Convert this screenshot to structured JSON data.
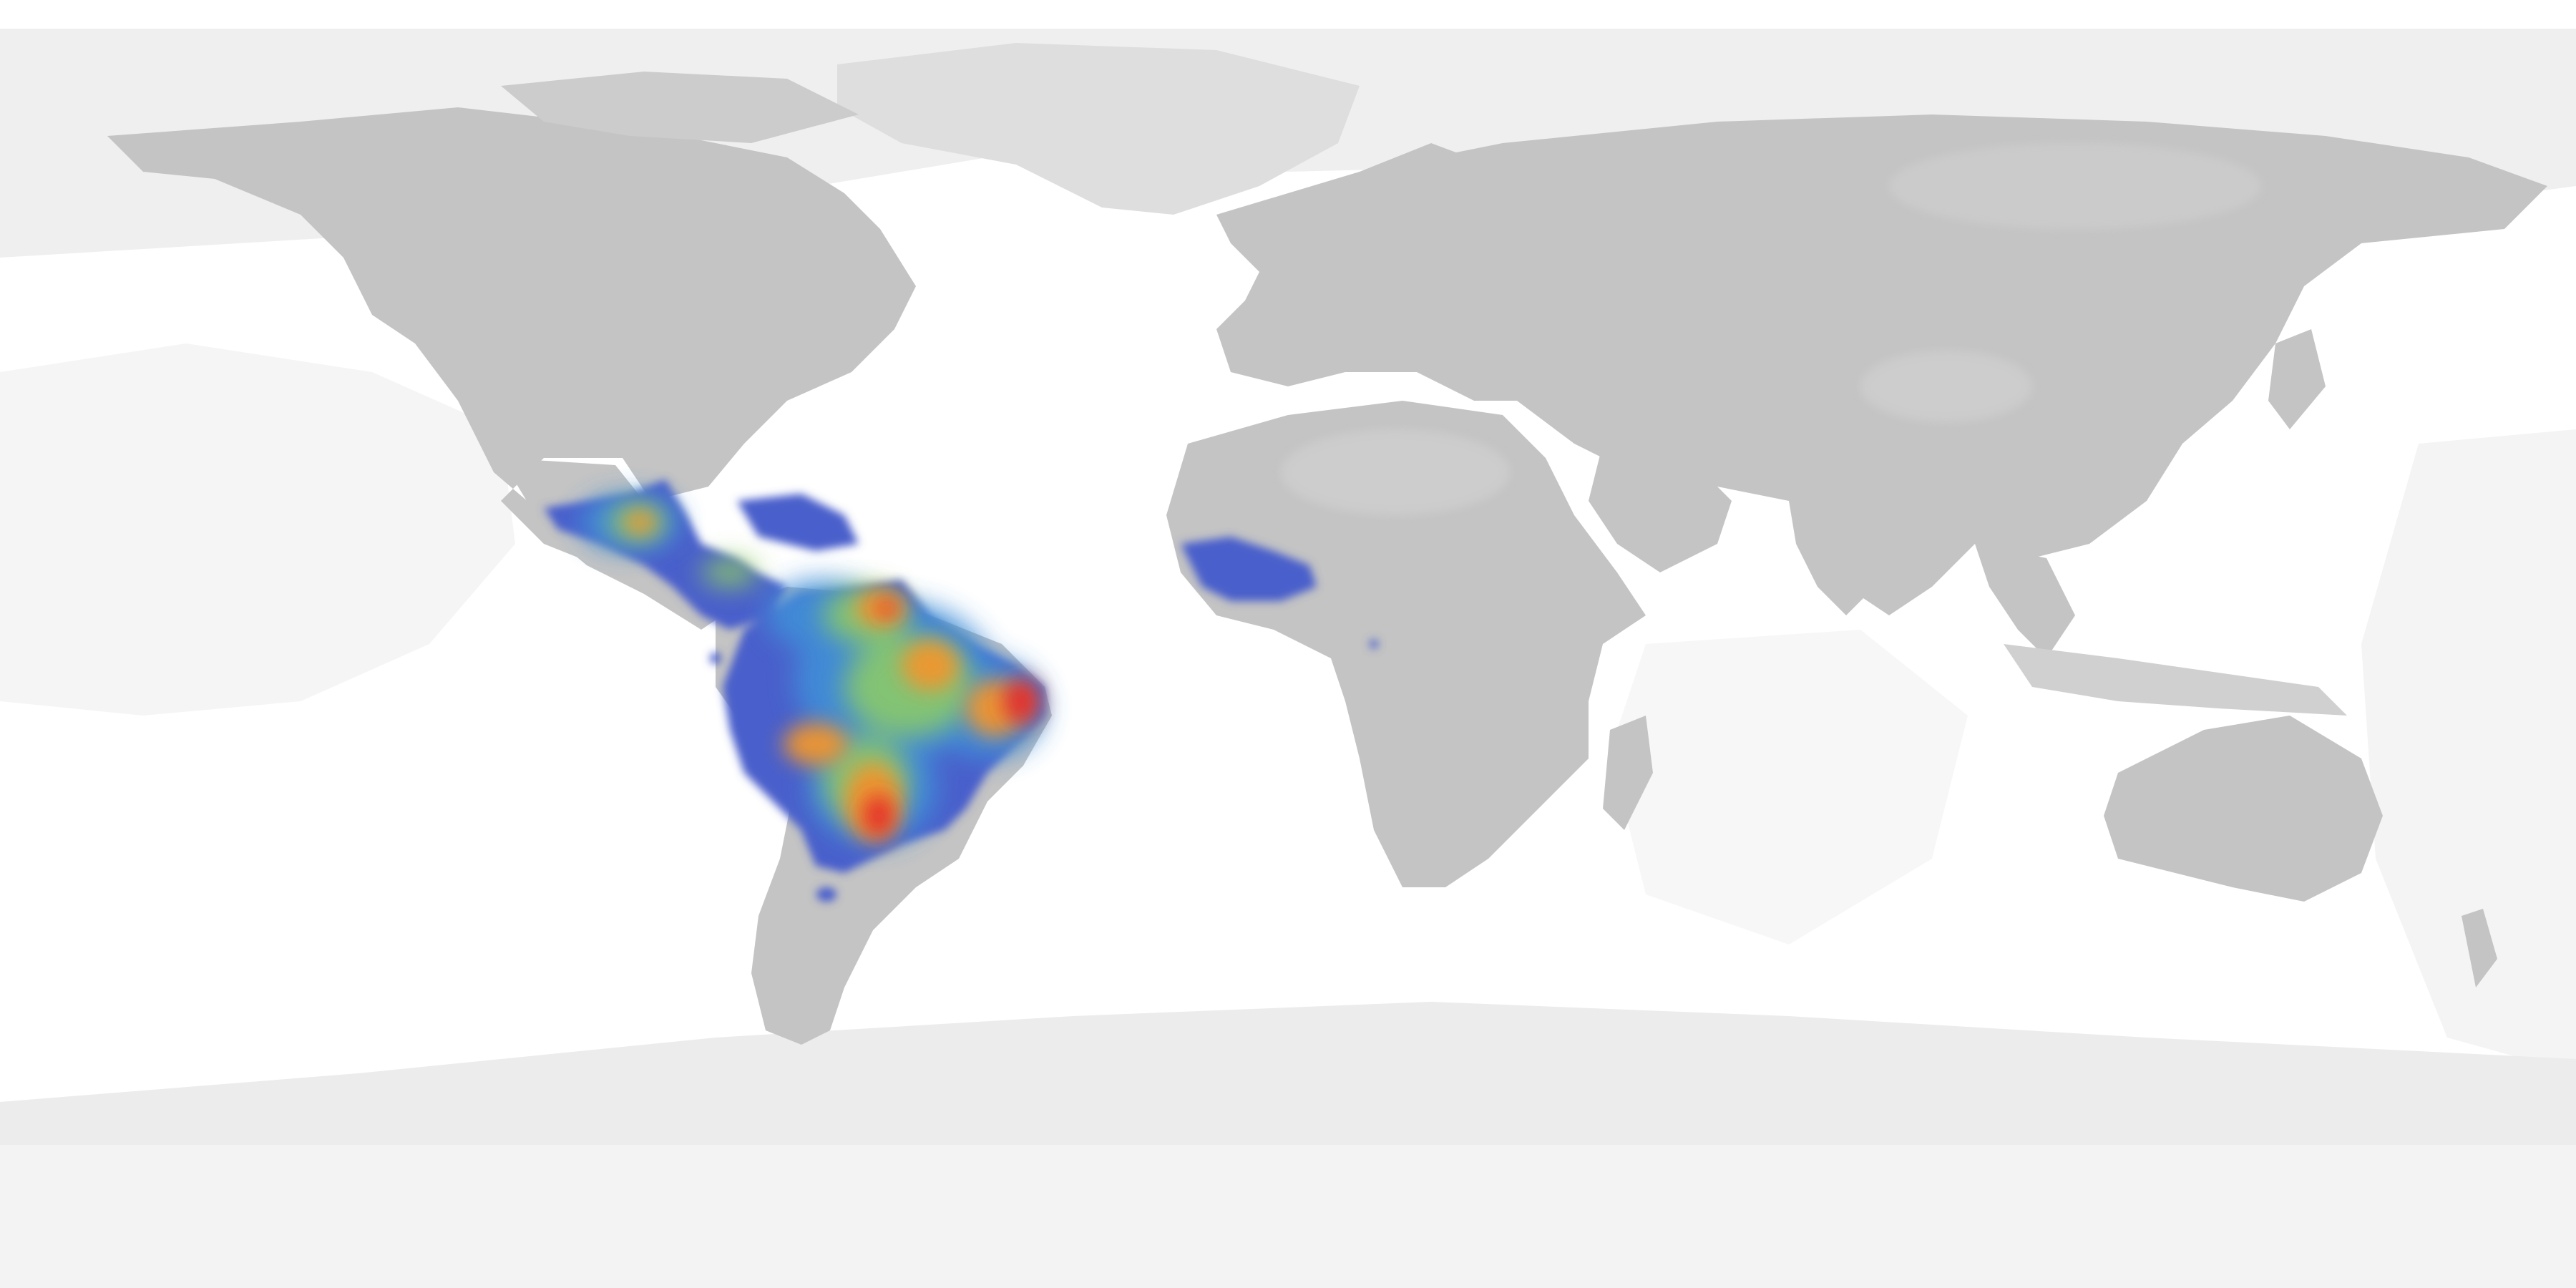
{
  "map": {
    "projection": "equirectangular",
    "coverage": "world",
    "colors": {
      "ocean": "#ffffff",
      "ocean_record_light": "#f2f2f2",
      "ocean_record_mid": "#e6e6e6",
      "land": "#c4c4c4",
      "land_sparse": "#dadada",
      "polar": "#eeeeee"
    }
  },
  "heatmap": {
    "description_kind": "species occurrence density",
    "color_scale": [
      "#4a5ecb",
      "#3f7fd8",
      "#3fb6c0",
      "#9acd5a",
      "#f2b13c",
      "#f07a2c",
      "#e5312a"
    ],
    "regions": [
      "central-america",
      "caribbean",
      "northern-south-america",
      "amazon-basin",
      "eastern-brazil",
      "paraguay-southern-brazil",
      "west-africa"
    ]
  }
}
